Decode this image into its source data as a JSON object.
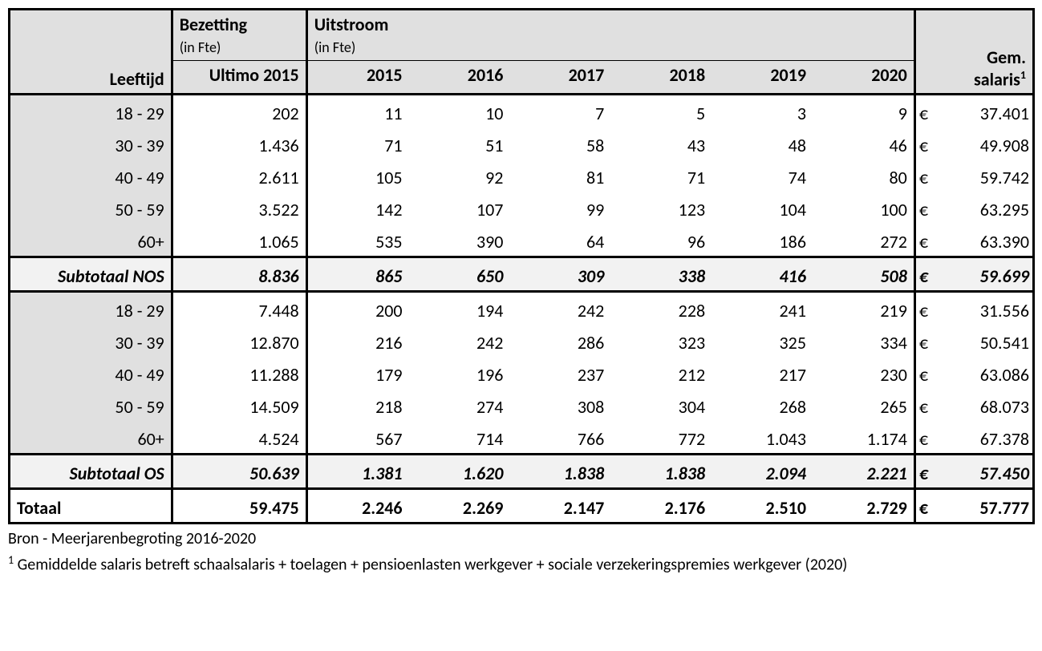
{
  "header": {
    "leeftijd": "Leeftijd",
    "bezetting": "Bezetting",
    "bezetting_sub": "(in Fte)",
    "uitstroom": "Uitstroom",
    "uitstroom_sub": "(in Fte)",
    "ultimo": "Ultimo 2015",
    "gem": "Gem.",
    "salaris": "salaris",
    "superscript": "1",
    "years": [
      "2015",
      "2016",
      "2017",
      "2018",
      "2019",
      "2020"
    ]
  },
  "section_nos": {
    "rows": [
      {
        "age": "18 - 29",
        "bezetting": "202",
        "y": [
          "11",
          "10",
          "7",
          "5",
          "3",
          "9"
        ],
        "salary": "37.401"
      },
      {
        "age": "30 - 39",
        "bezetting": "1.436",
        "y": [
          "71",
          "51",
          "58",
          "43",
          "48",
          "46"
        ],
        "salary": "49.908"
      },
      {
        "age": "40 - 49",
        "bezetting": "2.611",
        "y": [
          "105",
          "92",
          "81",
          "71",
          "74",
          "80"
        ],
        "salary": "59.742"
      },
      {
        "age": "50 - 59",
        "bezetting": "3.522",
        "y": [
          "142",
          "107",
          "99",
          "123",
          "104",
          "100"
        ],
        "salary": "63.295"
      },
      {
        "age": "60+",
        "bezetting": "1.065",
        "y": [
          "535",
          "390",
          "64",
          "96",
          "186",
          "272"
        ],
        "salary": "63.390"
      }
    ],
    "subtotal": {
      "label": "Subtotaal NOS",
      "bezetting": "8.836",
      "y": [
        "865",
        "650",
        "309",
        "338",
        "416",
        "508"
      ],
      "salary": "59.699"
    }
  },
  "section_os": {
    "rows": [
      {
        "age": "18 - 29",
        "bezetting": "7.448",
        "y": [
          "200",
          "194",
          "242",
          "228",
          "241",
          "219"
        ],
        "salary": "31.556"
      },
      {
        "age": "30 - 39",
        "bezetting": "12.870",
        "y": [
          "216",
          "242",
          "286",
          "323",
          "325",
          "334"
        ],
        "salary": "50.541"
      },
      {
        "age": "40 - 49",
        "bezetting": "11.288",
        "y": [
          "179",
          "196",
          "237",
          "212",
          "217",
          "230"
        ],
        "salary": "63.086"
      },
      {
        "age": "50 - 59",
        "bezetting": "14.509",
        "y": [
          "218",
          "274",
          "308",
          "304",
          "268",
          "265"
        ],
        "salary": "68.073"
      },
      {
        "age": "60+",
        "bezetting": "4.524",
        "y": [
          "567",
          "714",
          "766",
          "772",
          "1.043",
          "1.174"
        ],
        "salary": "67.378"
      }
    ],
    "subtotal": {
      "label": "Subtotaal OS",
      "bezetting": "50.639",
      "y": [
        "1.381",
        "1.620",
        "1.838",
        "1.838",
        "2.094",
        "2.221"
      ],
      "salary": "57.450"
    }
  },
  "total": {
    "label": "Totaal",
    "bezetting": "59.475",
    "y": [
      "2.246",
      "2.269",
      "2.147",
      "2.176",
      "2.510",
      "2.729"
    ],
    "salary": "57.777"
  },
  "footer": {
    "source": "Bron - Meerjarenbegroting 2016-2020",
    "note_super": "1",
    "note": "Gemiddelde salaris betreft schaalsalaris + toelagen + pensioenlasten werkgever + sociale verzekeringspremies werkgever (2020)"
  },
  "euro": "€"
}
